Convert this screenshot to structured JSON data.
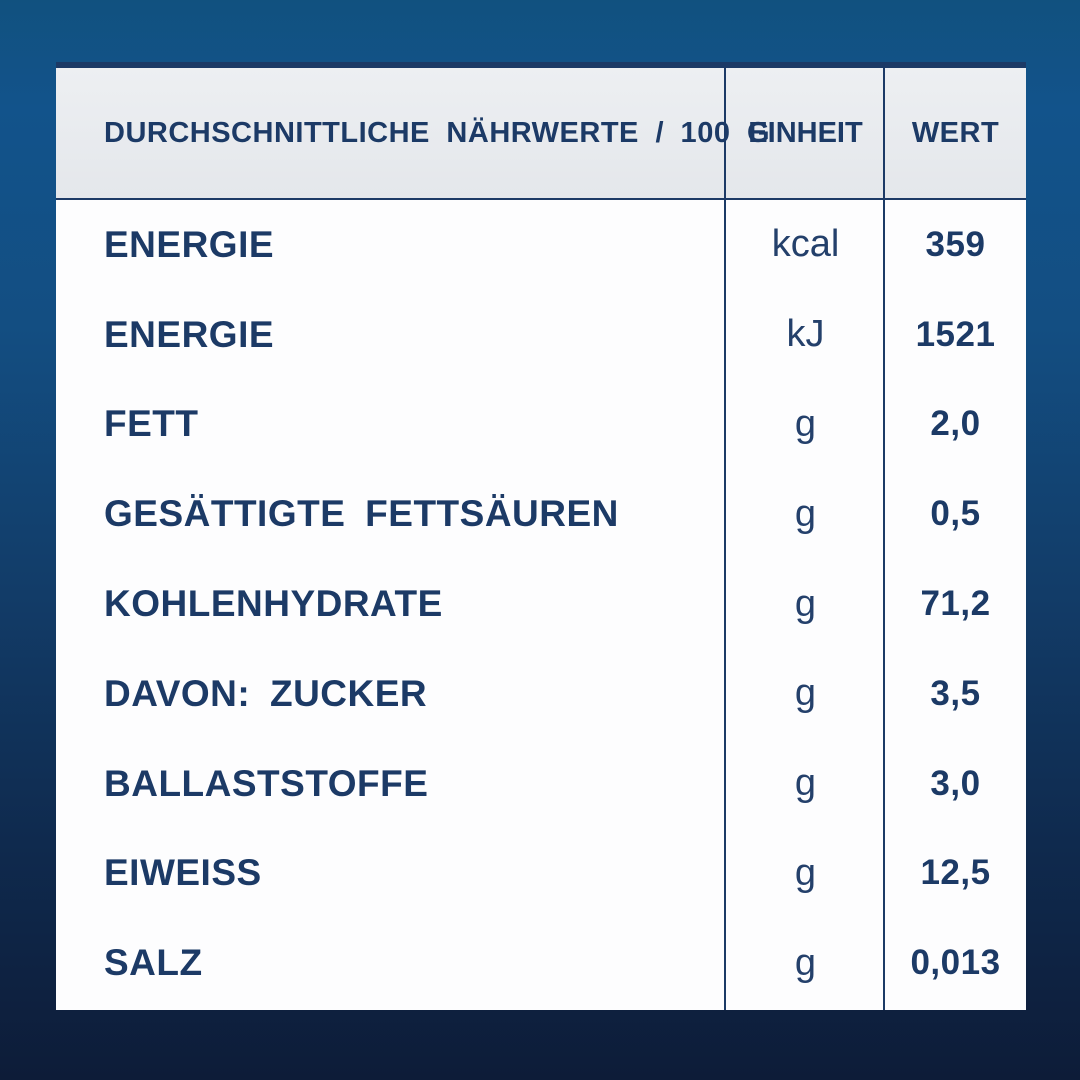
{
  "table": {
    "header": {
      "nutrients": "DURCHSCHNITTLICHE NÄHRWERTE / 100 G",
      "unit": "EINHEIT",
      "value": "WERT"
    },
    "rows": [
      {
        "label": "ENERGIE",
        "unit": "kcal",
        "value": "359"
      },
      {
        "label": "ENERGIE",
        "unit": "kJ",
        "value": "1521"
      },
      {
        "label": "FETT",
        "unit": "g",
        "value": "2,0"
      },
      {
        "label": "GESÄTTIGTE FETTSÄUREN",
        "unit": "g",
        "value": "0,5"
      },
      {
        "label": "KOHLENHYDRATE",
        "unit": "g",
        "value": "71,2"
      },
      {
        "label": "DAVON: ZUCKER",
        "unit": "g",
        "value": "3,5"
      },
      {
        "label": "BALLASTSTOFFE",
        "unit": "g",
        "value": "3,0"
      },
      {
        "label": "EIWEISS",
        "unit": "g",
        "value": "12,5"
      },
      {
        "label": "SALZ",
        "unit": "g",
        "value": "0,013"
      }
    ]
  },
  "colors": {
    "text_navy": "#1c3a66",
    "header_bg": "#e8eaed",
    "card_bg": "#fdfdfe",
    "background_top": "#12538b",
    "background_bottom": "#0d1c38"
  }
}
